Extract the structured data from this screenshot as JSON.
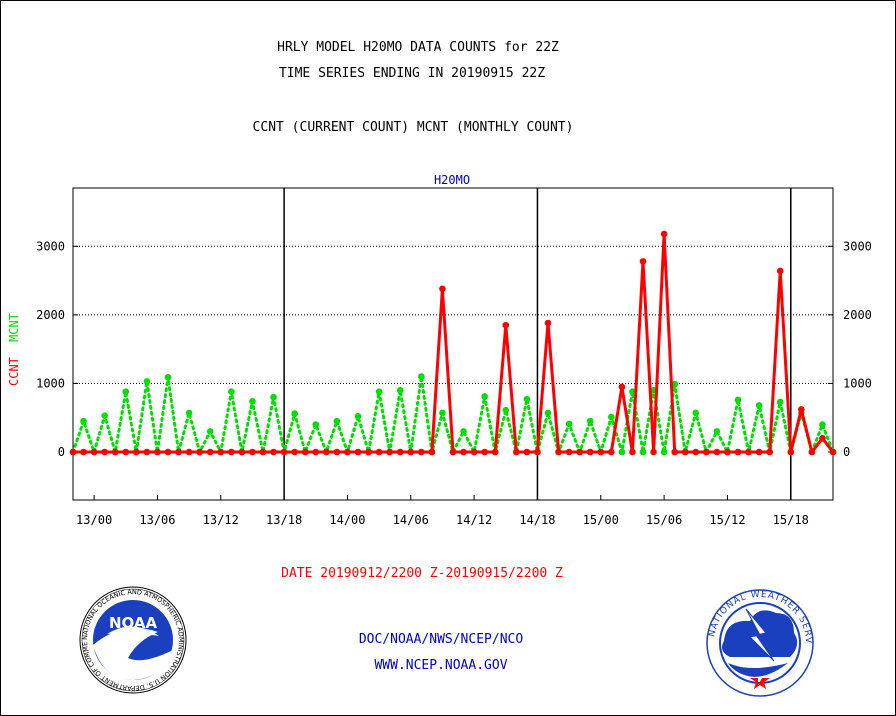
{
  "header": {
    "title_line1": "HRLY MODEL H20MO DATA COUNTS for 22Z",
    "title_line2": "TIME SERIES ENDING IN 20190915 22Z",
    "subtitle": "CCNT (CURRENT COUNT) MCNT (MONTHLY COUNT)"
  },
  "footer": {
    "date_range": "DATE 20190912/2200 Z-20190915/2200 Z",
    "org_path": "DOC/NOAA/NWS/NCEP/NCO",
    "website": "WWW.NCEP.NOAA.GOV"
  },
  "logos": {
    "noaa_text": "NOAA",
    "noaa_ring": "NATIONAL OCEANIC AND ATMOSPHERIC ADMINISTRATION U.S. DEPARTMENT OF COMMERCE",
    "nws_ring": "NATIONAL WEATHER SERVICE"
  },
  "colors": {
    "ccnt": "#ff0000",
    "mcnt": "#00e000",
    "label_blue": "#0000cc",
    "date_red": "#ff0000"
  },
  "chart_data": {
    "type": "line",
    "title": "H20MO",
    "ylabel_ccnt": "CCNT",
    "ylabel_mcnt": "MCNT",
    "ylim": [
      -700,
      3850
    ],
    "yticks": [
      0,
      1000,
      2000,
      3000
    ],
    "x_start_hour": -2,
    "x_end_hour": 70,
    "x_tick_labels": [
      {
        "hour": 0,
        "label": "13/00"
      },
      {
        "hour": 6,
        "label": "13/06"
      },
      {
        "hour": 12,
        "label": "13/12"
      },
      {
        "hour": 18,
        "label": "13/18"
      },
      {
        "hour": 24,
        "label": "14/00"
      },
      {
        "hour": 30,
        "label": "14/06"
      },
      {
        "hour": 36,
        "label": "14/12"
      },
      {
        "hour": 42,
        "label": "14/18"
      },
      {
        "hour": 48,
        "label": "15/00"
      },
      {
        "hour": 54,
        "label": "15/06"
      },
      {
        "hour": 60,
        "label": "15/12"
      },
      {
        "hour": 66,
        "label": "15/18"
      }
    ],
    "day_dividers": [
      18,
      42,
      66
    ],
    "grid": "horizontal dotted at y ticks",
    "series": [
      {
        "name": "CCNT",
        "style": "solid",
        "values": [
          0,
          0,
          0,
          0,
          0,
          0,
          0,
          0,
          0,
          0,
          0,
          0,
          0,
          0,
          0,
          0,
          0,
          0,
          0,
          0,
          0,
          0,
          0,
          0,
          0,
          0,
          0,
          0,
          0,
          0,
          0,
          0,
          0,
          0,
          0,
          2380,
          0,
          0,
          0,
          0,
          0,
          1850,
          0,
          0,
          0,
          1880,
          0,
          0,
          0,
          0,
          0,
          0,
          950,
          0,
          2780,
          0,
          3180,
          0,
          0,
          0,
          0,
          0,
          0,
          0,
          0,
          0,
          0,
          2640,
          0,
          620,
          0,
          200,
          0
        ]
      },
      {
        "name": "MCNT",
        "style": "dotted",
        "values": [
          0,
          450,
          0,
          530,
          0,
          880,
          0,
          1030,
          0,
          1090,
          0,
          570,
          0,
          300,
          0,
          880,
          0,
          740,
          0,
          800,
          0,
          560,
          0,
          400,
          0,
          450,
          0,
          520,
          0,
          880,
          0,
          900,
          0,
          1100,
          0,
          570,
          0,
          300,
          0,
          810,
          0,
          610,
          0,
          770,
          0,
          570,
          0,
          410,
          0,
          450,
          0,
          510,
          0,
          880,
          0,
          900,
          0,
          990,
          0,
          570,
          0,
          300,
          0,
          760,
          0,
          680,
          0,
          730,
          0,
          570,
          0,
          400,
          0
        ]
      }
    ]
  }
}
